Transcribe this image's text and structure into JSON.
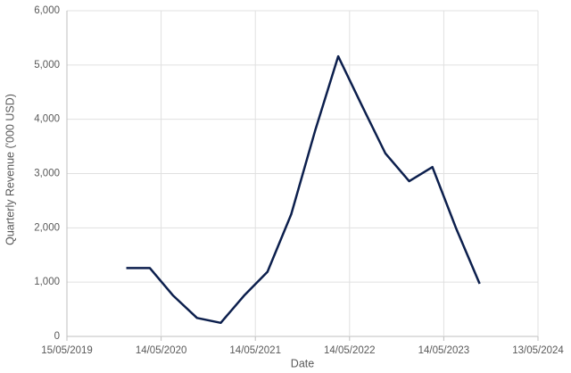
{
  "chart_data": {
    "type": "line",
    "x_label": "Date",
    "y_label": "Quarterly Revenue ('000 USD)",
    "x": [
      "31/12/2019",
      "31/03/2020",
      "30/06/2020",
      "30/09/2020",
      "31/12/2020",
      "31/03/2021",
      "30/06/2021",
      "30/09/2021",
      "31/12/2021",
      "31/03/2022",
      "30/06/2022",
      "30/09/2022",
      "31/12/2022",
      "31/03/2023",
      "30/06/2023",
      "30/09/2023"
    ],
    "values": [
      1260,
      1260,
      750,
      340,
      250,
      750,
      1190,
      2250,
      3780,
      5160,
      4260,
      3370,
      2860,
      3120,
      2000,
      970
    ],
    "color": "#0c1f4d",
    "xlim": [
      "15/05/2019",
      "13/05/2024"
    ],
    "xticks": [
      "15/05/2019",
      "14/05/2020",
      "14/05/2021",
      "14/05/2022",
      "14/05/2023",
      "13/05/2024"
    ],
    "ylim": [
      0,
      6000
    ],
    "yticks": [
      0,
      {
        "value": 1000,
        "label": "1,000"
      },
      {
        "value": 2000,
        "label": "2,000"
      },
      {
        "value": 3000,
        "label": "3,000"
      },
      {
        "value": 4000,
        "label": "4,000"
      },
      {
        "value": 5000,
        "label": "5,000"
      },
      {
        "value": 6000,
        "label": "6,000"
      }
    ],
    "grid": true
  }
}
